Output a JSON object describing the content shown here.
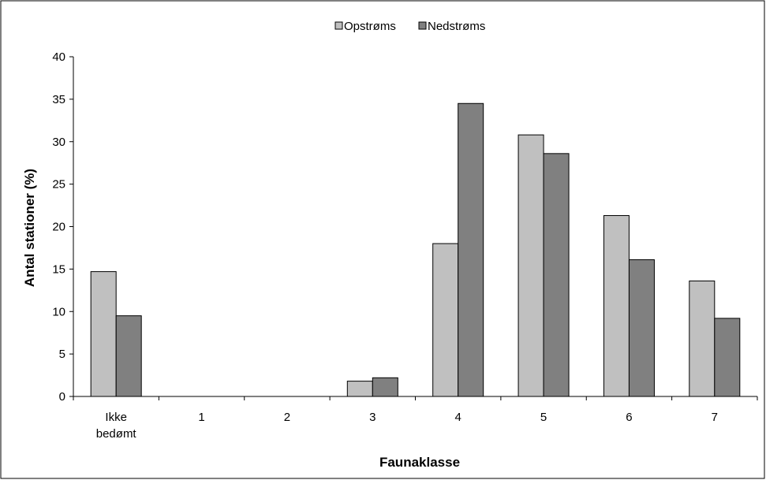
{
  "chart_data": {
    "type": "bar",
    "categories": [
      "Ikke\nbedømt",
      "1",
      "2",
      "3",
      "4",
      "5",
      "6",
      "7"
    ],
    "series": [
      {
        "name": "Opstrøms",
        "color": "#c0c0c0",
        "values": [
          14.7,
          0,
          0,
          1.8,
          18.0,
          30.8,
          21.3,
          13.6
        ]
      },
      {
        "name": "Nedstrøms",
        "color": "#808080",
        "values": [
          9.5,
          0,
          0,
          2.2,
          34.5,
          28.6,
          16.1,
          9.2
        ]
      }
    ],
    "xlabel": "Faunaklasse",
    "ylabel": "Antal stationer (%)",
    "ylim": [
      0,
      40
    ],
    "yticks": [
      0,
      5,
      10,
      15,
      20,
      25,
      30,
      35,
      40
    ],
    "legend_position": "top-center",
    "grid": false
  }
}
